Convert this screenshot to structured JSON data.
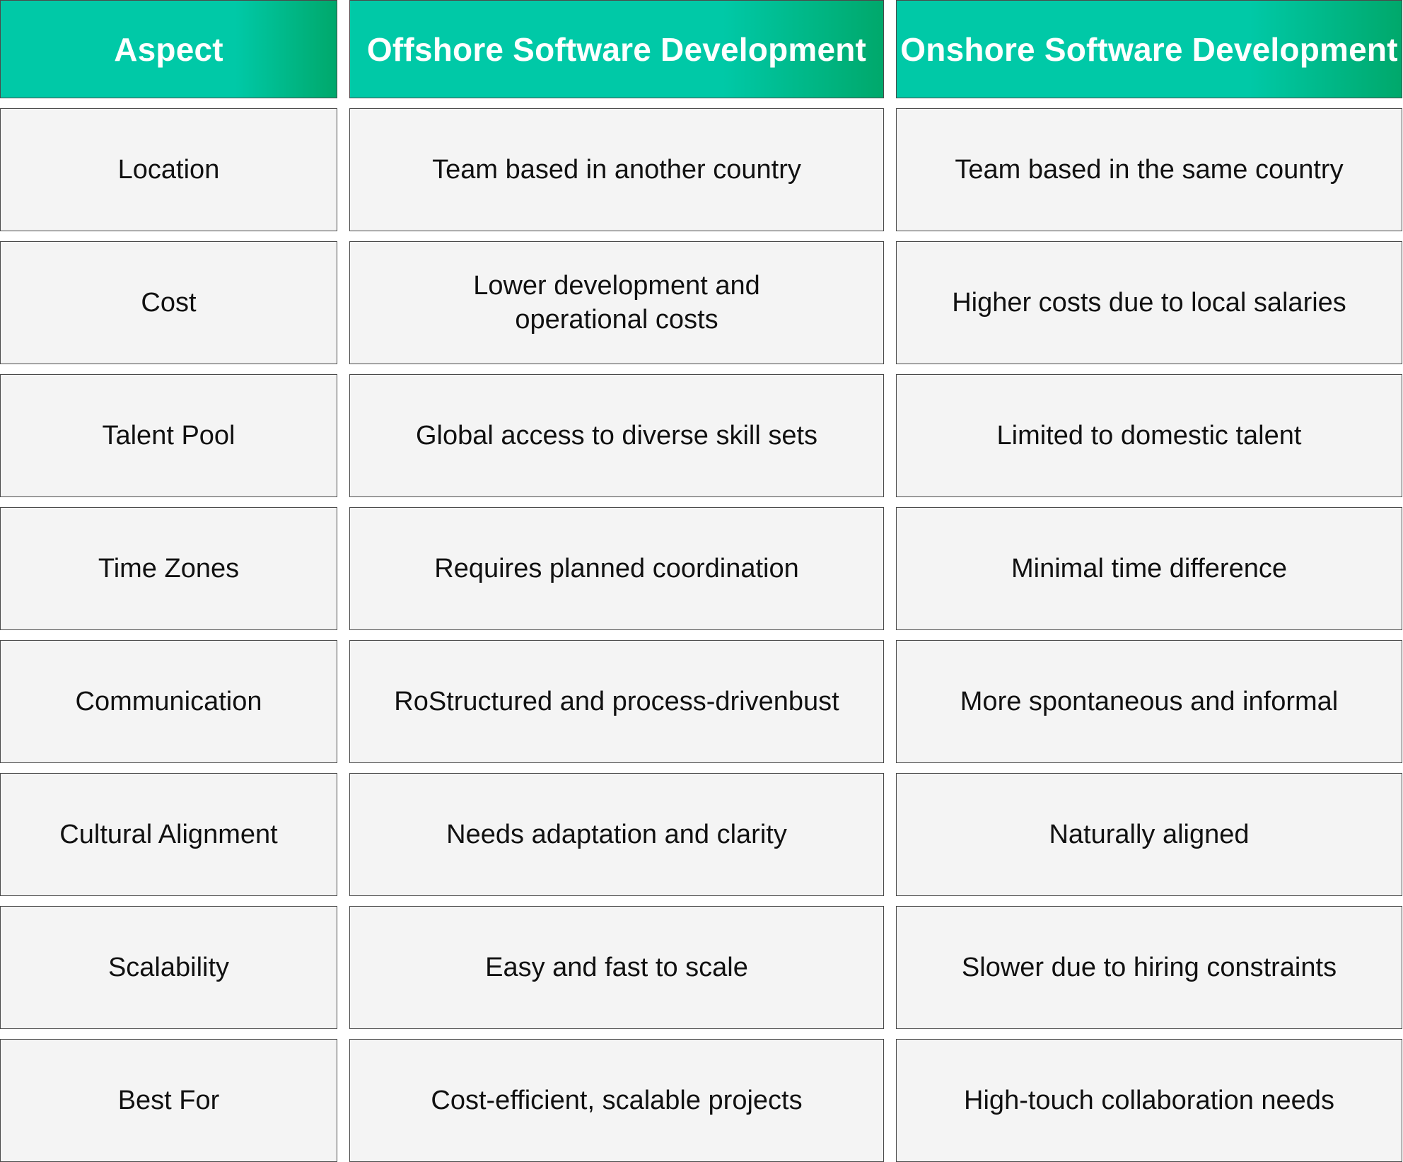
{
  "table": {
    "headers": [
      "Aspect",
      "Offshore Software Development",
      "Onshore Software Development"
    ],
    "rows": [
      {
        "aspect": "Location",
        "offshore": "Team based in another country",
        "onshore": "Team based in the same country"
      },
      {
        "aspect": "Cost",
        "offshore": "Lower development and operational costs",
        "onshore": "Higher costs due to local salaries"
      },
      {
        "aspect": "Talent Pool",
        "offshore": "Global access to diverse skill sets",
        "onshore": "Limited to domestic talent"
      },
      {
        "aspect": "Time Zones",
        "offshore": "Requires planned coordination",
        "onshore": "Minimal time difference"
      },
      {
        "aspect": "Communication",
        "offshore": "RoStructured and process-drivenbust",
        "onshore": "More spontaneous and informal"
      },
      {
        "aspect": "Cultural Alignment",
        "offshore": "Needs adaptation and clarity",
        "onshore": "Naturally aligned"
      },
      {
        "aspect": "Scalability",
        "offshore": "Easy and fast to scale",
        "onshore": "Slower due to hiring constraints"
      },
      {
        "aspect": "Best For",
        "offshore": "Cost-efficient, scalable projects",
        "onshore": "High-touch collaboration needs"
      }
    ]
  }
}
